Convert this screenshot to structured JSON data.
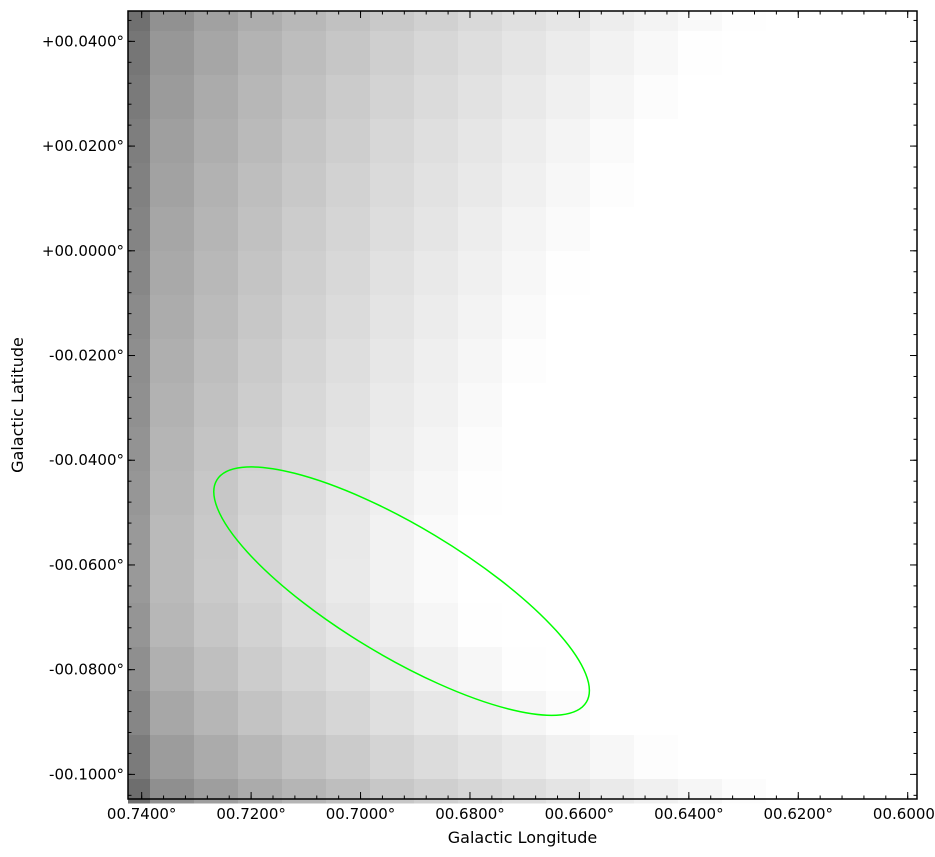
{
  "chart_data": {
    "type": "heatmap",
    "title": "",
    "xlabel": "Galactic Longitude",
    "ylabel": "Galactic Latitude",
    "x_unit": "deg",
    "y_unit": "deg",
    "xlim": [
      0.7425,
      0.5983
    ],
    "ylim": [
      -0.1047,
      0.0458
    ],
    "x_ticks": [
      {
        "value": 0.74,
        "label": "00.7400°"
      },
      {
        "value": 0.72,
        "label": "00.7200°"
      },
      {
        "value": 0.7,
        "label": "00.7000°"
      },
      {
        "value": 0.68,
        "label": "00.6800°"
      },
      {
        "value": 0.66,
        "label": "00.6600°"
      },
      {
        "value": 0.64,
        "label": "00.6400°"
      },
      {
        "value": 0.62,
        "label": "00.6200°"
      },
      {
        "value": 0.6,
        "label": "00.6000°"
      }
    ],
    "y_ticks": [
      {
        "value": 0.04,
        "label": "+00.0400°"
      },
      {
        "value": 0.02,
        "label": "+00.0200°"
      },
      {
        "value": 0.0,
        "label": "+00.0000°"
      },
      {
        "value": -0.02,
        "label": "-00.0200°"
      },
      {
        "value": -0.04,
        "label": "-00.0400°"
      },
      {
        "value": -0.06,
        "label": "-00.0600°"
      },
      {
        "value": -0.08,
        "label": "-00.0800°"
      },
      {
        "value": -0.1,
        "label": "-00.1000°"
      }
    ],
    "colormap": "grayscale (dark = low, white = high)",
    "ellipse_region": {
      "color": "#00ff00",
      "center_l": 0.6925,
      "center_b": -0.065,
      "semi_major_deg": 0.0394,
      "semi_minor_deg": 0.0124,
      "angle_deg": -31
    },
    "grid": false
  }
}
